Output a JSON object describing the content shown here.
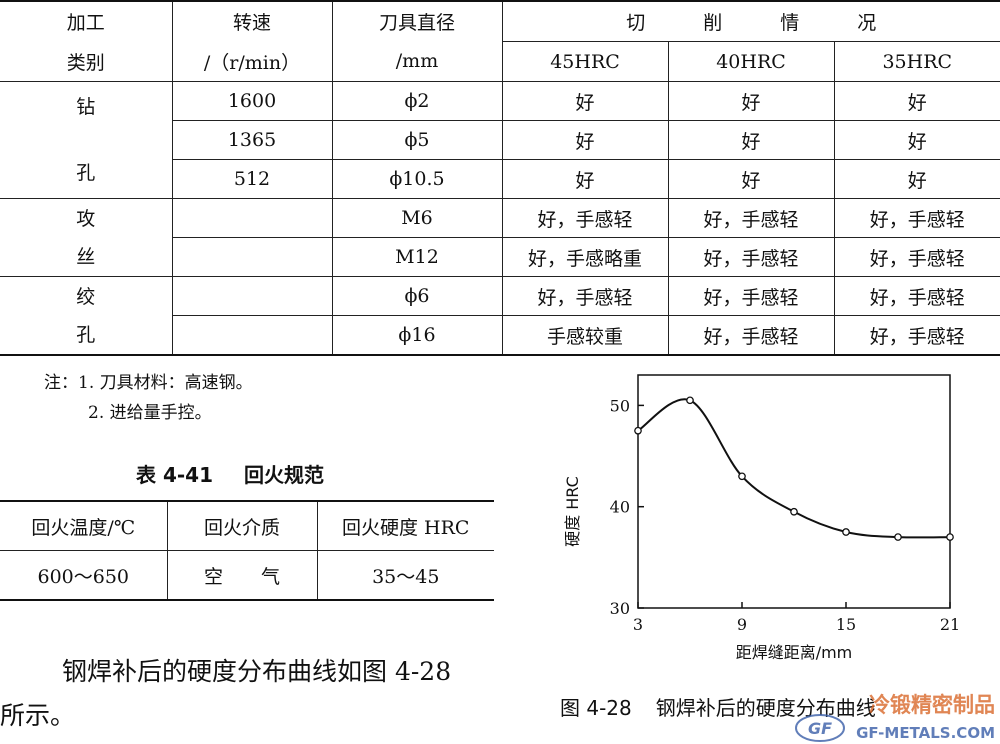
{
  "table1": {
    "headers": {
      "col1_line1": "加工",
      "col1_line2": "类别",
      "col2_line1": "转速",
      "col2_line2": "/（r/min）",
      "col3_line1": "刀具直径",
      "col3_line2": "/mm",
      "group": "切削情况",
      "sub1": "45HRC",
      "sub2": "40HRC",
      "sub3": "35HRC"
    },
    "groups": [
      {
        "name_chars": [
          "钻",
          "孔"
        ],
        "rows": [
          {
            "speed": "1600",
            "diameter": "ϕ2",
            "c45": "好",
            "c40": "好",
            "c35": "好"
          },
          {
            "speed": "1365",
            "diameter": "ϕ5",
            "c45": "好",
            "c40": "好",
            "c35": "好"
          },
          {
            "speed": "512",
            "diameter": "ϕ10.5",
            "c45": "好",
            "c40": "好",
            "c35": "好"
          }
        ]
      },
      {
        "name_chars": [
          "攻",
          "丝"
        ],
        "rows": [
          {
            "speed": "",
            "diameter": "M6",
            "c45": "好，手感轻",
            "c40": "好，手感轻",
            "c35": "好，手感轻"
          },
          {
            "speed": "",
            "diameter": "M12",
            "c45": "好，手感略重",
            "c40": "好，手感轻",
            "c35": "好，手感轻"
          }
        ]
      },
      {
        "name_chars": [
          "绞",
          "孔"
        ],
        "rows": [
          {
            "speed": "",
            "diameter": "ϕ6",
            "c45": "好，手感轻",
            "c40": "好，手感轻",
            "c35": "好，手感轻"
          },
          {
            "speed": "",
            "diameter": "ϕ16",
            "c45": "手感较重",
            "c40": "好，手感轻",
            "c35": "好，手感轻"
          }
        ]
      }
    ]
  },
  "notes": {
    "line1": "注：1. 刀具材料：高速钢。",
    "line2": "2. 进给量手控。"
  },
  "table2": {
    "caption_num": "表 4-41",
    "caption_title": "回火规范",
    "headers": [
      "回火温度/℃",
      "回火介质",
      "回火硬度 HRC"
    ],
    "row": [
      "600～650",
      "空　　气",
      "35～45"
    ]
  },
  "paragraph": {
    "line1": "钢焊补后的硬度分布曲线如图 4-28",
    "line2": "所示。"
  },
  "figure": {
    "caption_num": "图 4-28",
    "caption_title": "钢焊补后的硬度分布曲线"
  },
  "watermark": {
    "top": "冷锻精密制品",
    "bottom": "GF-METALS.COM",
    "logo": "GF"
  },
  "chart_data": {
    "type": "line",
    "xlabel": "距焊缝距离/mm",
    "ylabel": "硬度 HRC",
    "xlim": [
      3,
      21
    ],
    "ylim": [
      30,
      53
    ],
    "xticks": [
      3,
      9,
      15,
      21
    ],
    "yticks": [
      30,
      40,
      50
    ],
    "grid": false,
    "series": [
      {
        "x": [
          3,
          6,
          9,
          12,
          15,
          18,
          21
        ],
        "values": [
          47.5,
          50.5,
          43,
          39.5,
          37.5,
          37,
          37
        ]
      }
    ],
    "colors": {
      "line": "#111111"
    }
  }
}
